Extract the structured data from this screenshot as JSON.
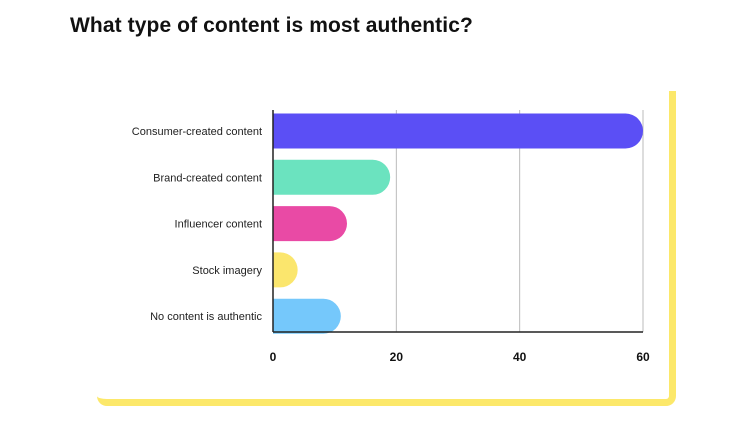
{
  "title": "What type of content is most authentic?",
  "colors": {
    "accent": "#fce86a",
    "grid": "#bbbbbb",
    "axis": "#222222"
  },
  "chart_data": {
    "type": "bar",
    "orientation": "horizontal",
    "title": "What type of content is most authentic?",
    "categories": [
      "Consumer-created content",
      "Brand-created content",
      "Influencer content",
      "Stock imagery",
      "No content is authentic"
    ],
    "values": [
      60,
      19,
      12,
      4,
      11
    ],
    "bar_colors": [
      "#5b4ff5",
      "#6be3bf",
      "#e94aa5",
      "#fbe66d",
      "#75c8fb"
    ],
    "xlim": [
      0,
      60
    ],
    "xticks": [
      0,
      20,
      40,
      60
    ],
    "grid": true,
    "legend": "none"
  }
}
